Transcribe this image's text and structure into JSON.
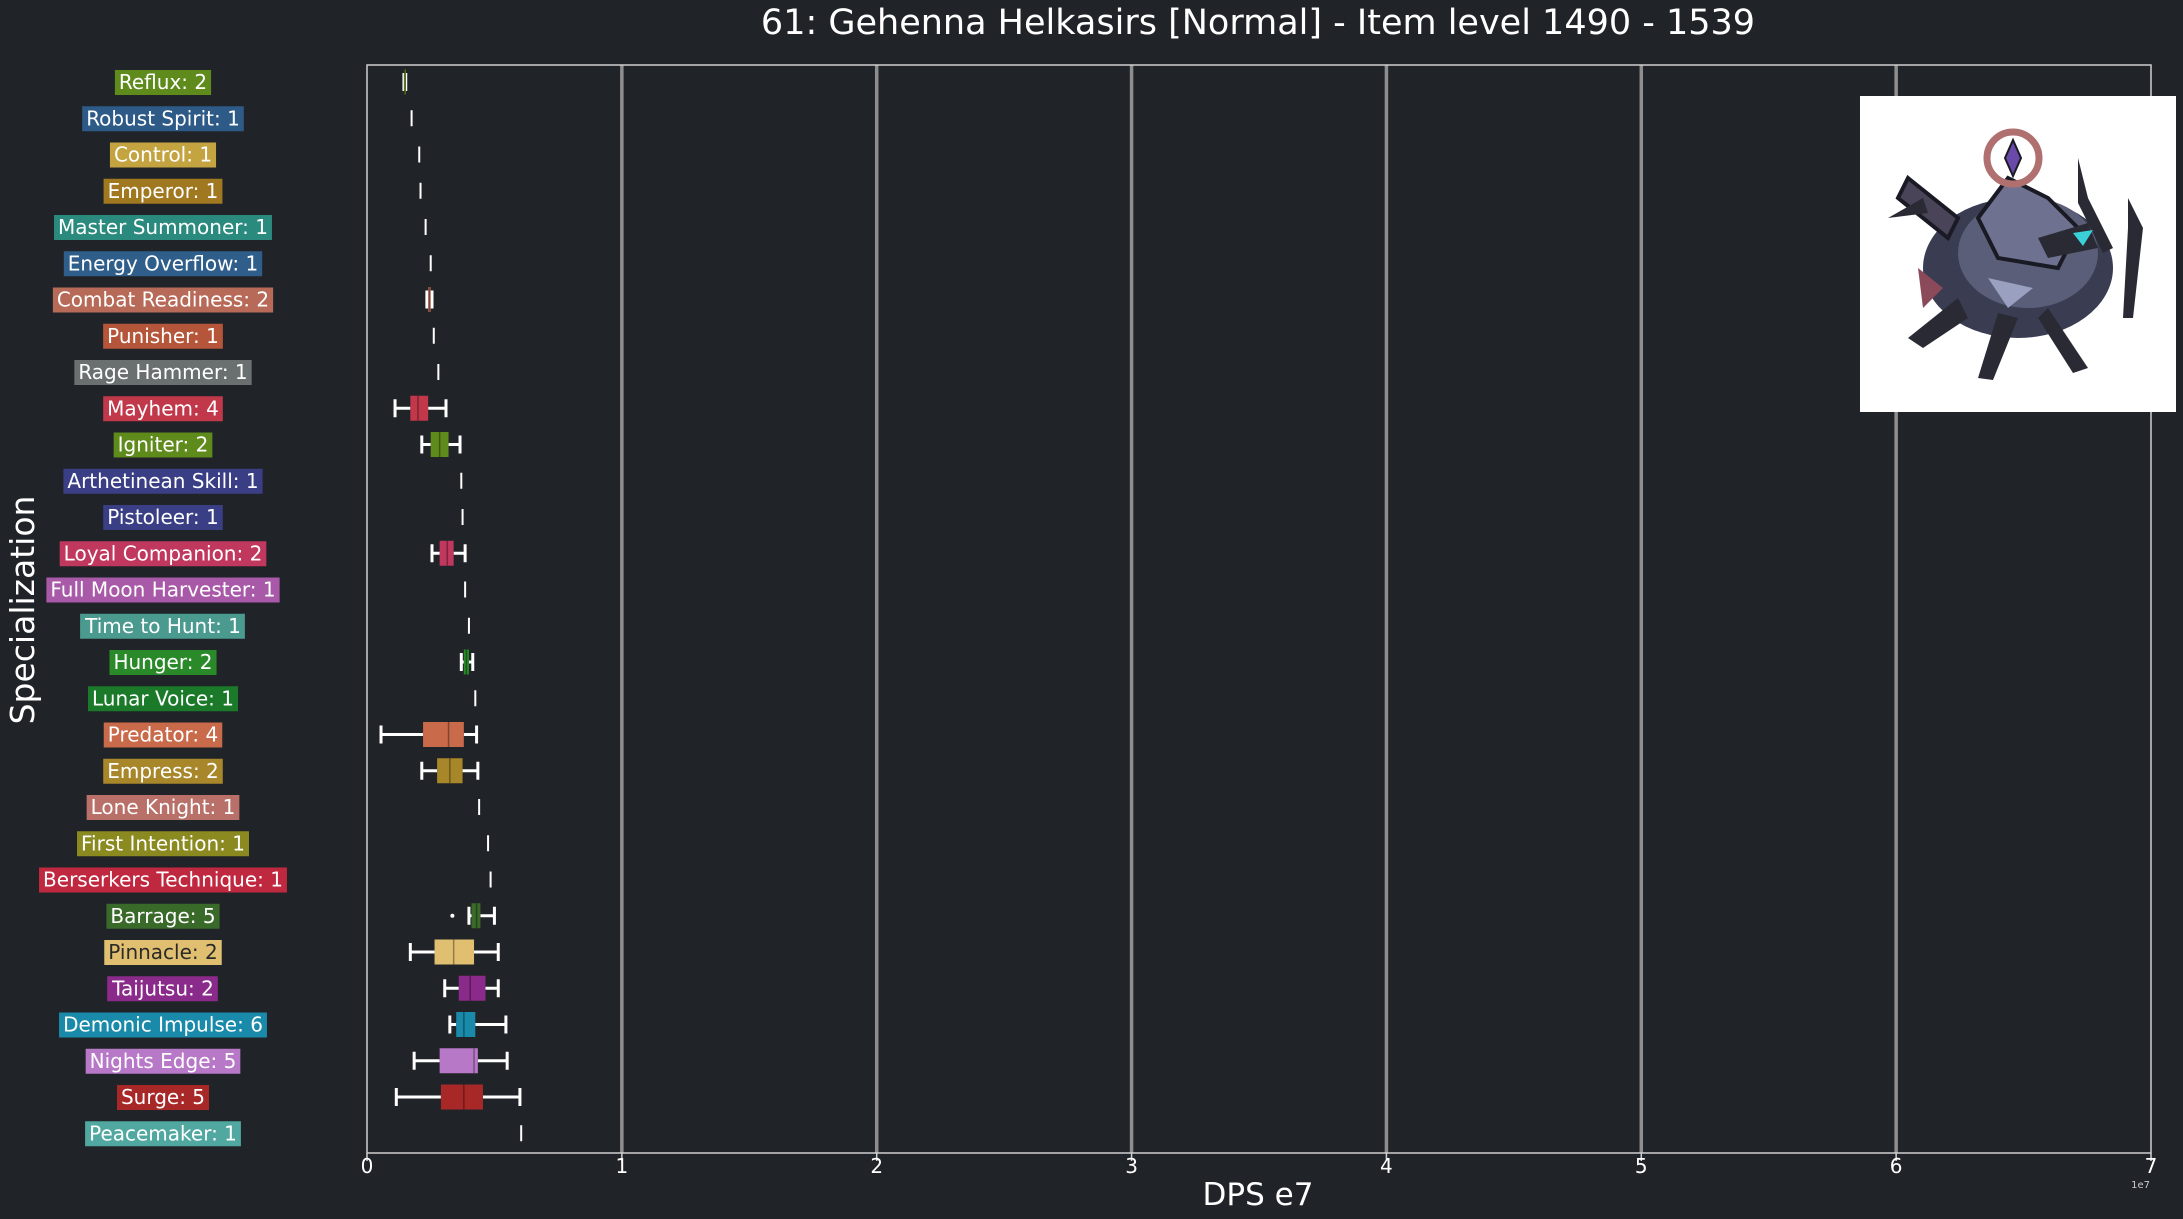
{
  "chart_data": {
    "type": "boxplot",
    "orientation": "horizontal",
    "title": "61: Gehenna Helkasirs [Normal] - Item level 1490 - 1539",
    "xlabel": "DPS e7",
    "ylabel": "Specialization",
    "xlim": [
      0,
      70000000
    ],
    "x_ticks": [
      0,
      10000000,
      20000000,
      30000000,
      40000000,
      50000000,
      60000000,
      70000000
    ],
    "x_tick_labels": [
      "0",
      "1",
      "2",
      "3",
      "4",
      "5",
      "6",
      "7"
    ],
    "x_offset_label": "1e7",
    "grid": "vertical",
    "background": "#202327",
    "series": [
      {
        "label": "Reflux: 2",
        "color": "#5f8a1c",
        "min": 1450000,
        "q1": 1470000,
        "median": 1480000,
        "q3": 1500000,
        "max": 1520000,
        "outliers": []
      },
      {
        "label": "Robust Spirit: 1",
        "color": "#2d5a87",
        "min": 1750000,
        "q1": 1750000,
        "median": 1750000,
        "q3": 1750000,
        "max": 1750000,
        "outliers": []
      },
      {
        "label": "Control: 1",
        "color": "#c4a440",
        "min": 2050000,
        "q1": 2050000,
        "median": 2050000,
        "q3": 2050000,
        "max": 2050000,
        "outliers": []
      },
      {
        "label": "Emperor: 1",
        "color": "#a07820",
        "min": 2100000,
        "q1": 2100000,
        "median": 2100000,
        "q3": 2100000,
        "max": 2100000,
        "outliers": []
      },
      {
        "label": "Master Summoner: 1",
        "color": "#2a8a7e",
        "min": 2300000,
        "q1": 2300000,
        "median": 2300000,
        "q3": 2300000,
        "max": 2300000,
        "outliers": []
      },
      {
        "label": "Energy Overflow: 1",
        "color": "#2f5e8a",
        "min": 2500000,
        "q1": 2500000,
        "median": 2500000,
        "q3": 2500000,
        "max": 2500000,
        "outliers": []
      },
      {
        "label": "Combat Readiness: 2",
        "color": "#b86a58",
        "min": 2350000,
        "q1": 2400000,
        "median": 2450000,
        "q3": 2500000,
        "max": 2550000,
        "outliers": []
      },
      {
        "label": "Punisher: 1",
        "color": "#b5553a",
        "min": 2620000,
        "q1": 2620000,
        "median": 2620000,
        "q3": 2620000,
        "max": 2620000,
        "outliers": []
      },
      {
        "label": "Rage Hammer: 1",
        "color": "#6a7070",
        "min": 2800000,
        "q1": 2800000,
        "median": 2800000,
        "q3": 2800000,
        "max": 2800000,
        "outliers": []
      },
      {
        "label": "Mayhem: 4",
        "color": "#c0384a",
        "min": 1100000,
        "q1": 1700000,
        "median": 2000000,
        "q3": 2400000,
        "max": 3100000,
        "outliers": []
      },
      {
        "label": "Igniter: 2",
        "color": "#5f8a1c",
        "min": 2150000,
        "q1": 2500000,
        "median": 2850000,
        "q3": 3200000,
        "max": 3650000,
        "outliers": []
      },
      {
        "label": "Arthetinean Skill: 1",
        "color": "#3a3f85",
        "min": 3700000,
        "q1": 3700000,
        "median": 3700000,
        "q3": 3700000,
        "max": 3700000,
        "outliers": []
      },
      {
        "label": "Pistoleer: 1",
        "color": "#3a3f85",
        "min": 3750000,
        "q1": 3750000,
        "median": 3750000,
        "q3": 3750000,
        "max": 3750000,
        "outliers": []
      },
      {
        "label": "Loyal Companion: 2",
        "color": "#c0385e",
        "min": 2550000,
        "q1": 2850000,
        "median": 3150000,
        "q3": 3400000,
        "max": 3850000,
        "outliers": []
      },
      {
        "label": "Full Moon Harvester: 1",
        "color": "#a85aa8",
        "min": 3850000,
        "q1": 3850000,
        "median": 3850000,
        "q3": 3850000,
        "max": 3850000,
        "outliers": []
      },
      {
        "label": "Time to Hunt: 1",
        "color": "#4a9a90",
        "min": 4000000,
        "q1": 4000000,
        "median": 4000000,
        "q3": 4000000,
        "max": 4000000,
        "outliers": []
      },
      {
        "label": "Hunger: 2",
        "color": "#2a8a2a",
        "min": 3700000,
        "q1": 3800000,
        "median": 3900000,
        "q3": 4000000,
        "max": 4150000,
        "outliers": []
      },
      {
        "label": "Lunar Voice: 1",
        "color": "#1a7a2a",
        "min": 4250000,
        "q1": 4250000,
        "median": 4250000,
        "q3": 4250000,
        "max": 4250000,
        "outliers": []
      },
      {
        "label": "Predator: 4",
        "color": "#c96a4a",
        "min": 550000,
        "q1": 2200000,
        "median": 3200000,
        "q3": 3800000,
        "max": 4300000,
        "outliers": []
      },
      {
        "label": "Empress: 2",
        "color": "#a8862a",
        "min": 2150000,
        "q1": 2750000,
        "median": 3250000,
        "q3": 3750000,
        "max": 4350000,
        "outliers": []
      },
      {
        "label": "Lone Knight: 1",
        "color": "#b87068",
        "min": 4400000,
        "q1": 4400000,
        "median": 4400000,
        "q3": 4400000,
        "max": 4400000,
        "outliers": []
      },
      {
        "label": "First Intention: 1",
        "color": "#8a8a20",
        "min": 4750000,
        "q1": 4750000,
        "median": 4750000,
        "q3": 4750000,
        "max": 4750000,
        "outliers": []
      },
      {
        "label": "Berserkers Technique: 1",
        "color": "#c02840",
        "min": 4850000,
        "q1": 4850000,
        "median": 4850000,
        "q3": 4850000,
        "max": 4850000,
        "outliers": []
      },
      {
        "label": "Barrage: 5",
        "color": "#3a6a2a",
        "min": 4000000,
        "q1": 4100000,
        "median": 4300000,
        "q3": 4450000,
        "max": 5000000,
        "outliers": [
          3350000
        ]
      },
      {
        "label": "Pinnacle: 2",
        "color": "#e0c070",
        "min": 1700000,
        "q1": 2650000,
        "median": 3400000,
        "q3": 4200000,
        "max": 5150000,
        "outliers": []
      },
      {
        "label": "Taijutsu: 2",
        "color": "#8a2a8a",
        "min": 3050000,
        "q1": 3600000,
        "median": 4050000,
        "q3": 4650000,
        "max": 5150000,
        "outliers": []
      },
      {
        "label": "Demonic Impulse: 6",
        "color": "#1a8aaa",
        "min": 3250000,
        "q1": 3500000,
        "median": 3800000,
        "q3": 4250000,
        "max": 5450000,
        "outliers": []
      },
      {
        "label": "Nights Edge: 5",
        "color": "#b878c8",
        "min": 1850000,
        "q1": 2850000,
        "median": 4200000,
        "q3": 4350000,
        "max": 5500000,
        "outliers": []
      },
      {
        "label": "Surge: 5",
        "color": "#a82828",
        "min": 1150000,
        "q1": 2900000,
        "median": 3800000,
        "q3": 4550000,
        "max": 6000000,
        "outliers": []
      },
      {
        "label": "Peacemaker: 1",
        "color": "#50a8a0",
        "min": 6050000,
        "q1": 6050000,
        "median": 6050000,
        "q3": 6050000,
        "max": 6050000,
        "outliers": []
      }
    ]
  },
  "portrait": {
    "description_icon": "boss-portrait-icon"
  }
}
